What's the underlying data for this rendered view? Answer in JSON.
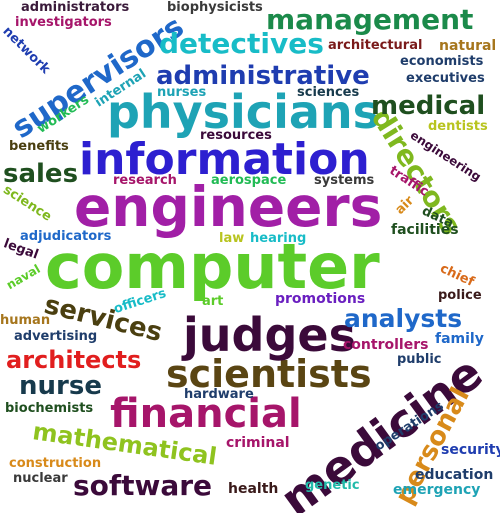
{
  "words": [
    {
      "text": "computer",
      "color": "#5ccc2a"
    },
    {
      "text": "engineers",
      "color": "#a11fa6"
    },
    {
      "text": "information",
      "color": "#2d1fd0"
    },
    {
      "text": "physicians",
      "color": "#1ea3b5"
    },
    {
      "text": "scientists",
      "color": "#5a4513"
    },
    {
      "text": "judges",
      "color": "#3b0a3a"
    },
    {
      "text": "medicine",
      "color": "#3b0a3a"
    },
    {
      "text": "financial",
      "color": "#a6156a"
    },
    {
      "text": "management",
      "color": "#1b8a4a"
    },
    {
      "text": "administrative",
      "color": "#1f3db0"
    },
    {
      "text": "supervisors",
      "color": "#1f68c9"
    },
    {
      "text": "detectives",
      "color": "#18bcc7"
    },
    {
      "text": "services",
      "color": "#4a3f10"
    },
    {
      "text": "analysts",
      "color": "#1f68c9"
    },
    {
      "text": "architects",
      "color": "#e11e1e"
    },
    {
      "text": "nurse",
      "color": "#173a4c"
    },
    {
      "text": "mathematical",
      "color": "#8fc31f"
    },
    {
      "text": "software",
      "color": "#3b0a3a"
    },
    {
      "text": "personal",
      "color": "#d88a1a"
    },
    {
      "text": "directors",
      "color": "#7fb81f"
    },
    {
      "text": "medical",
      "color": "#1f4f1f"
    },
    {
      "text": "sales",
      "color": "#1f4f1f"
    },
    {
      "text": "administrators",
      "color": "#3a1a3a"
    },
    {
      "text": "biophysicists",
      "color": "#3a3a3a"
    },
    {
      "text": "investigators",
      "color": "#a6156a"
    },
    {
      "text": "network",
      "color": "#1f3db0"
    },
    {
      "text": "architectural",
      "color": "#7a1a1a"
    },
    {
      "text": "natural",
      "color": "#a6761d"
    },
    {
      "text": "economists",
      "color": "#1f3d6b"
    },
    {
      "text": "executives",
      "color": "#1f3d6b"
    },
    {
      "text": "workers",
      "color": "#22bb55"
    },
    {
      "text": "internal",
      "color": "#1ea3b5"
    },
    {
      "text": "nurses",
      "color": "#1ea3b5"
    },
    {
      "text": "sciences",
      "color": "#173a4c"
    },
    {
      "text": "dentists",
      "color": "#b8c41f"
    },
    {
      "text": "engineering",
      "color": "#3b0a3a"
    },
    {
      "text": "resources",
      "color": "#3b0a3a"
    },
    {
      "text": "benefits",
      "color": "#4a3f10"
    },
    {
      "text": "research",
      "color": "#a6156a"
    },
    {
      "text": "aerospace",
      "color": "#22bb55"
    },
    {
      "text": "systems",
      "color": "#3a3a3a"
    },
    {
      "text": "traffic",
      "color": "#a6156a"
    },
    {
      "text": "science",
      "color": "#7fb81f"
    },
    {
      "text": "air",
      "color": "#d88a1a"
    },
    {
      "text": "data",
      "color": "#1f4f1f"
    },
    {
      "text": "facilities",
      "color": "#1f4f1f"
    },
    {
      "text": "adjudicators",
      "color": "#1f68c9"
    },
    {
      "text": "law",
      "color": "#b8c41f"
    },
    {
      "text": "hearing",
      "color": "#18bcc7"
    },
    {
      "text": "legal",
      "color": "#3b0a3a"
    },
    {
      "text": "naval",
      "color": "#5ccc2a"
    },
    {
      "text": "chief",
      "color": "#d86a1a"
    },
    {
      "text": "police",
      "color": "#3a1a1a"
    },
    {
      "text": "officers",
      "color": "#18bcc7"
    },
    {
      "text": "art",
      "color": "#5ccc2a"
    },
    {
      "text": "promotions",
      "color": "#6a1fc0"
    },
    {
      "text": "human",
      "color": "#a6761d"
    },
    {
      "text": "advertising",
      "color": "#1f3d6b"
    },
    {
      "text": "controllers",
      "color": "#a6156a"
    },
    {
      "text": "family",
      "color": "#1f68c9"
    },
    {
      "text": "public",
      "color": "#1f3d6b"
    },
    {
      "text": "hardware",
      "color": "#1f3d6b"
    },
    {
      "text": "biochemists",
      "color": "#1f4f1f"
    },
    {
      "text": "operations",
      "color": "#1f3d6b"
    },
    {
      "text": "security",
      "color": "#1f3db0"
    },
    {
      "text": "criminal",
      "color": "#a6156a"
    },
    {
      "text": "construction",
      "color": "#d88a1a"
    },
    {
      "text": "nuclear",
      "color": "#3a3a3a"
    },
    {
      "text": "health",
      "color": "#3a1a1a"
    },
    {
      "text": "genetic",
      "color": "#22bbaa"
    },
    {
      "text": "education",
      "color": "#1f3d6b"
    },
    {
      "text": "emergency",
      "color": "#1ea3b5"
    }
  ]
}
